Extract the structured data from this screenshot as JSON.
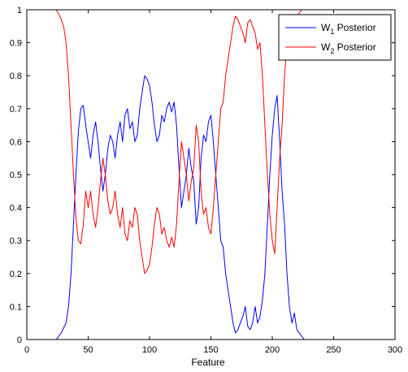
{
  "chart_data": {
    "type": "line",
    "title": "",
    "xlabel": "Feature",
    "ylabel": "",
    "xlim": [
      0,
      300
    ],
    "ylim": [
      0,
      1
    ],
    "xticks": [
      0,
      50,
      100,
      150,
      200,
      250,
      300
    ],
    "yticks": [
      0,
      0.1,
      0.2,
      0.3,
      0.4,
      0.5,
      0.6,
      0.7,
      0.8,
      0.9,
      1
    ],
    "grid": false,
    "legend_position": "top-right",
    "series": [
      {
        "name": "W₁ Posterior",
        "legend_main": "W",
        "legend_sub": "1",
        "legend_rest": " Posterior",
        "color": "#0000ff",
        "x": [
          24,
          28,
          32,
          34,
          36,
          38,
          40,
          42,
          44,
          46,
          48,
          50,
          52,
          54,
          56,
          58,
          60,
          62,
          64,
          66,
          68,
          70,
          72,
          74,
          76,
          78,
          80,
          82,
          84,
          86,
          88,
          90,
          92,
          94,
          96,
          98,
          100,
          102,
          104,
          106,
          108,
          110,
          112,
          114,
          116,
          118,
          120,
          122,
          124,
          126,
          128,
          130,
          132,
          134,
          136,
          138,
          140,
          142,
          144,
          146,
          148,
          150,
          152,
          154,
          156,
          158,
          160,
          162,
          164,
          166,
          168,
          170,
          172,
          174,
          176,
          178,
          180,
          182,
          184,
          186,
          188,
          190,
          192,
          194,
          196,
          198,
          200,
          202,
          204,
          206,
          208,
          210,
          212,
          214,
          216,
          218,
          220,
          222,
          224,
          226
        ],
        "y": [
          0,
          0.02,
          0.05,
          0.1,
          0.2,
          0.35,
          0.5,
          0.63,
          0.7,
          0.71,
          0.65,
          0.6,
          0.55,
          0.62,
          0.66,
          0.6,
          0.52,
          0.45,
          0.5,
          0.58,
          0.62,
          0.6,
          0.55,
          0.62,
          0.66,
          0.6,
          0.68,
          0.7,
          0.64,
          0.66,
          0.6,
          0.62,
          0.7,
          0.75,
          0.8,
          0.79,
          0.77,
          0.72,
          0.65,
          0.6,
          0.62,
          0.68,
          0.66,
          0.7,
          0.72,
          0.69,
          0.72,
          0.65,
          0.52,
          0.4,
          0.45,
          0.5,
          0.58,
          0.52,
          0.48,
          0.35,
          0.4,
          0.55,
          0.62,
          0.6,
          0.66,
          0.68,
          0.6,
          0.5,
          0.4,
          0.3,
          0.28,
          0.2,
          0.15,
          0.1,
          0.05,
          0.02,
          0.03,
          0.05,
          0.07,
          0.1,
          0.04,
          0.03,
          0.05,
          0.1,
          0.05,
          0.07,
          0.12,
          0.2,
          0.35,
          0.5,
          0.62,
          0.7,
          0.74,
          0.6,
          0.45,
          0.35,
          0.2,
          0.1,
          0.05,
          0.08,
          0.03,
          0.02,
          0.01,
          0
        ]
      },
      {
        "name": "W₂ Posterior",
        "legend_main": "W",
        "legend_sub": "2",
        "legend_rest": " Posterior",
        "color": "#ff0000",
        "x": [
          0,
          24,
          27,
          30,
          32,
          34,
          36,
          38,
          40,
          42,
          44,
          46,
          48,
          50,
          52,
          54,
          56,
          58,
          60,
          62,
          64,
          66,
          68,
          70,
          72,
          74,
          76,
          78,
          80,
          82,
          84,
          86,
          88,
          90,
          92,
          94,
          96,
          98,
          100,
          102,
          104,
          106,
          108,
          110,
          112,
          114,
          116,
          118,
          120,
          122,
          124,
          126,
          128,
          130,
          132,
          134,
          136,
          138,
          140,
          142,
          144,
          146,
          148,
          150,
          152,
          154,
          156,
          158,
          160,
          162,
          164,
          166,
          168,
          170,
          172,
          174,
          176,
          178,
          180,
          182,
          184,
          186,
          188,
          190,
          192,
          194,
          196,
          198,
          200,
          202,
          204,
          206,
          208,
          210,
          212,
          214,
          216,
          218,
          220,
          222,
          224,
          226,
          230,
          240,
          256
        ],
        "y": [
          1,
          1,
          0.98,
          0.95,
          0.9,
          0.8,
          0.65,
          0.5,
          0.37,
          0.3,
          0.29,
          0.35,
          0.45,
          0.4,
          0.45,
          0.38,
          0.34,
          0.4,
          0.48,
          0.55,
          0.5,
          0.42,
          0.38,
          0.4,
          0.45,
          0.38,
          0.34,
          0.4,
          0.32,
          0.3,
          0.36,
          0.34,
          0.4,
          0.38,
          0.3,
          0.25,
          0.2,
          0.21,
          0.23,
          0.28,
          0.35,
          0.4,
          0.38,
          0.32,
          0.34,
          0.3,
          0.28,
          0.31,
          0.28,
          0.35,
          0.48,
          0.6,
          0.55,
          0.5,
          0.42,
          0.48,
          0.52,
          0.65,
          0.6,
          0.45,
          0.38,
          0.4,
          0.34,
          0.32,
          0.4,
          0.5,
          0.6,
          0.7,
          0.72,
          0.8,
          0.85,
          0.9,
          0.95,
          0.98,
          0.97,
          0.95,
          0.93,
          0.9,
          0.96,
          0.97,
          0.95,
          0.93,
          0.88,
          0.9,
          0.8,
          0.65,
          0.5,
          0.38,
          0.3,
          0.26,
          0.4,
          0.55,
          0.65,
          0.8,
          0.9,
          0.92,
          0.95,
          0.97,
          0.98,
          0.99,
          1,
          1,
          1,
          1,
          1
        ]
      }
    ]
  }
}
